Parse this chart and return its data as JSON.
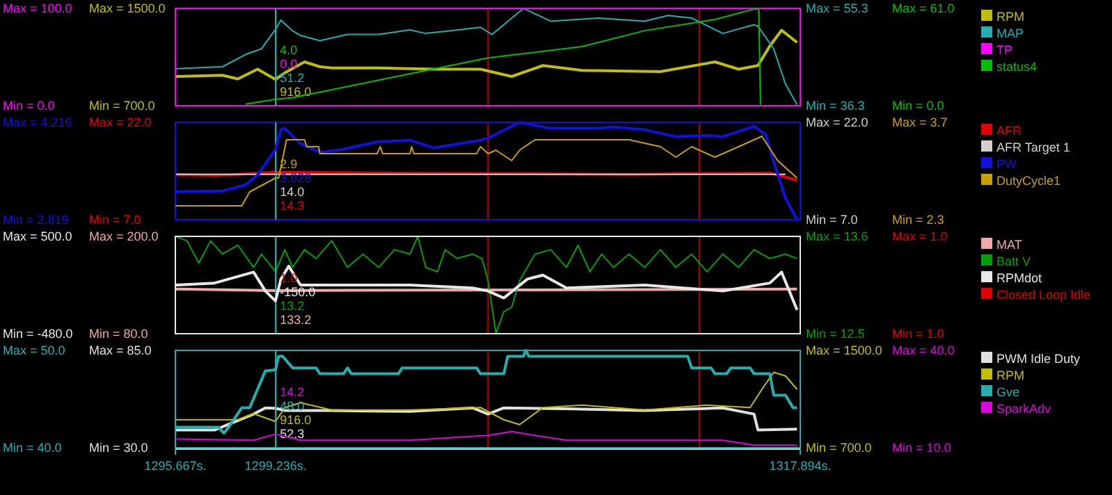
{
  "chart_data": [
    {
      "type": "line",
      "tick_labels": "y",
      "legend": "right",
      "xlim": [
        1295.667,
        1317.894
      ],
      "ylim": [
        700,
        1500
      ],
      "yticks": [
        {
          "value": 700,
          "label": "Min = 700.0"
        },
        {
          "value": 1500,
          "label": "Max = 1500.0"
        }
      ],
      "y2lim": [
        36.3,
        55.3
      ],
      "y2ticks": [
        {
          "value": 36.3,
          "label": "Min = 36.3"
        },
        {
          "value": 55.3,
          "label": "Max = 55.3"
        }
      ],
      "ref_lines": [
        {
          "axis": "x",
          "value": 1299.236,
          "color": "#20b0b0"
        },
        {
          "axis": "x",
          "value": 1306.79,
          "color": "#c00000"
        },
        {
          "axis": "x",
          "value": 1314.31,
          "color": "#c00000"
        }
      ],
      "annotations": [
        "51.2",
        "916.0"
      ],
      "series": [
        {
          "name": "RPM",
          "color": "#c0c000",
          "axis": "y",
          "x": [
            1295.67,
            1297.34,
            1297.89,
            1298.59,
            1299.23,
            1299.56,
            1300.26,
            1300.81,
            1301.23,
            1302.9,
            1304.85,
            1306.52,
            1307.63,
            1308.74,
            1310.13,
            1312.92,
            1314.86,
            1315.7,
            1316.39,
            1316.81,
            1317.23,
            1317.78
          ],
          "values": [
            940,
            950,
            920,
            1000,
            916,
            970,
            1060,
            1020,
            1010,
            1010,
            1000,
            1000,
            940,
            1030,
            990,
            980,
            1060,
            1000,
            1030,
            1190,
            1320,
            1220
          ]
        },
        {
          "name": "MAP",
          "color": "#20b0b0",
          "axis": "y2",
          "x": [
            1295.67,
            1297.34,
            1298.17,
            1298.73,
            1299.23,
            1299.42,
            1299.84,
            1300.12,
            1300.81,
            1301.79,
            1302.9,
            1304.01,
            1304.57,
            1305.4,
            1306.52,
            1306.93,
            1308.05,
            1309.02,
            1310.69,
            1312.36,
            1313.19,
            1314.03,
            1315.14,
            1316.25,
            1316.39,
            1316.95,
            1317.37,
            1317.78
          ],
          "values": [
            43.5,
            43.9,
            46.3,
            47.4,
            51.2,
            53.0,
            50.9,
            50.0,
            49.0,
            50.2,
            50.2,
            51.1,
            50.4,
            50.9,
            51.6,
            50.2,
            55.3,
            52.8,
            53.4,
            52.8,
            53.9,
            53.4,
            50.4,
            52.1,
            51.8,
            47.4,
            40.5,
            36.5
          ]
        }
      ]
    },
    {
      "type": "line",
      "tick_labels": "y",
      "legend": "right",
      "xlim": [
        1295.667,
        1317.894
      ],
      "ylim": [
        0,
        100
      ],
      "yticks": [
        {
          "value": 0,
          "label": "Min = 0.0"
        },
        {
          "value": 100,
          "label": "Max = 100.0"
        }
      ],
      "y2lim": [
        0,
        61
      ],
      "y2ticks": [
        {
          "value": 0,
          "label": "Min = 0.0"
        },
        {
          "value": 61,
          "label": "Max = 61.0"
        }
      ],
      "ref_lines": [
        {
          "axis": "x",
          "value": 1299.236,
          "color": "#20b0b0"
        }
      ],
      "annotations": [
        "4.0",
        "0.0"
      ],
      "series": [
        {
          "name": "TP",
          "color": "#ff00ff",
          "axis": "y"
        },
        {
          "name": "status4",
          "color": "#00c000",
          "axis": "y2",
          "x": [
            1298.17,
            1299.23,
            1299.84,
            1302.9,
            1306.79,
            1310.13,
            1312.36,
            1314.86,
            1316.25,
            1316.42,
            1316.48
          ],
          "values": [
            1,
            4,
            5,
            16,
            30,
            37,
            47,
            54,
            60.5,
            60.5,
            0.5
          ]
        }
      ]
    },
    {
      "type": "line",
      "tick_labels": "y",
      "legend": "right",
      "xlim": [
        1295.667,
        1317.894
      ],
      "ylim": [
        7,
        22
      ],
      "yticks": [
        {
          "value": 7,
          "label": "Min = 7.0"
        },
        {
          "value": 22,
          "label": "Max = 22.0"
        }
      ],
      "y2lim": [
        7,
        22
      ],
      "y2ticks": [
        {
          "value": 7,
          "label": "Min = 7.0"
        },
        {
          "value": 22,
          "label": "Max = 22.0"
        }
      ],
      "ref_lines": [
        {
          "axis": "x",
          "value": 1299.236,
          "color": "#20b0b0"
        },
        {
          "axis": "x",
          "value": 1306.79,
          "color": "#c00000"
        },
        {
          "axis": "x",
          "value": 1314.31,
          "color": "#c00000"
        }
      ],
      "annotations": [
        "14.0",
        "14.3"
      ],
      "series": [
        {
          "name": "AFR",
          "color": "#e00000",
          "axis": "y",
          "x": [
            1295.67,
            1297.06,
            1299.23,
            1302.9,
            1306.79,
            1311.8,
            1316.81,
            1317.78
          ],
          "values": [
            14.0,
            13.8,
            14.3,
            14.2,
            14.1,
            14.0,
            14.2,
            13.1
          ]
        },
        {
          "name": "AFR Target 1",
          "color": "#d0d0d0",
          "axis": "y2",
          "x": [
            1295.67,
            1299.23,
            1317.37
          ],
          "values": [
            14.0,
            14.0,
            14.0
          ]
        }
      ]
    },
    {
      "type": "line",
      "tick_labels": "y",
      "legend": "right",
      "xlim": [
        1295.667,
        1317.894
      ],
      "ylim": [
        2.819,
        4.216
      ],
      "yticks": [
        {
          "value": 2.819,
          "label": "Min = 2.819"
        },
        {
          "value": 4.216,
          "label": "Max = 4.216"
        }
      ],
      "y2lim": [
        2.3,
        3.7
      ],
      "y2ticks": [
        {
          "value": 2.3,
          "label": "Min = 2.3"
        },
        {
          "value": 3.7,
          "label": "Max = 3.7"
        }
      ],
      "ref_lines": [
        {
          "axis": "x",
          "value": 1299.236,
          "color": "#20b0b0"
        }
      ],
      "annotations": [
        "2.9",
        "3.828"
      ],
      "series": [
        {
          "name": "PW",
          "color": "#1010e0",
          "axis": "y",
          "x": [
            1295.67,
            1297.34,
            1298.17,
            1298.59,
            1299.23,
            1299.42,
            1299.56,
            1300.12,
            1300.81,
            1301.51,
            1302.9,
            1304.01,
            1304.85,
            1306.52,
            1306.79,
            1307.91,
            1309.02,
            1310.69,
            1311.25,
            1312.36,
            1313.47,
            1314.58,
            1315.14,
            1316.25,
            1316.67,
            1316.95,
            1317.37,
            1317.78
          ],
          "values": [
            3.22,
            3.23,
            3.32,
            3.46,
            3.828,
            4.11,
            4.13,
            3.91,
            3.79,
            3.82,
            3.94,
            3.96,
            3.85,
            3.96,
            3.99,
            4.216,
            4.13,
            4.13,
            4.15,
            4.11,
            4.01,
            4.03,
            4.01,
            4.16,
            4.04,
            3.65,
            3.13,
            2.819
          ]
        },
        {
          "name": "DutyCycle1",
          "color": "#c8a000",
          "axis": "y2",
          "x": [
            1295.67,
            1298.03,
            1298.31,
            1299.23,
            1299.34,
            1299.62,
            1300.26,
            1300.34,
            1300.76,
            1300.81,
            1302.84,
            1302.96,
            1303.04,
            1304.01,
            1304.07,
            1304.15,
            1306.38,
            1306.52,
            1306.79,
            1307.07,
            1307.63,
            1307.91,
            1308.46,
            1309.3,
            1311.8,
            1312.92,
            1313.47,
            1314.03,
            1314.86,
            1315.7,
            1316.53,
            1317.09,
            1317.78
          ],
          "values": [
            2.5,
            2.5,
            2.7,
            2.9,
            2.9,
            3.45,
            3.45,
            3.35,
            3.35,
            3.25,
            3.25,
            3.35,
            3.25,
            3.25,
            3.35,
            3.25,
            3.25,
            3.35,
            3.25,
            3.3,
            3.15,
            3.3,
            3.45,
            3.45,
            3.45,
            3.35,
            3.2,
            3.35,
            3.2,
            3.35,
            3.5,
            3.15,
            2.9
          ]
        }
      ]
    },
    {
      "type": "line",
      "tick_labels": "y",
      "legend": "right",
      "xlim": [
        1295.667,
        1317.894
      ],
      "ylim": [
        80,
        200
      ],
      "yticks": [
        {
          "value": 80,
          "label": "Min = 80.0"
        },
        {
          "value": 200,
          "label": "Max = 200.0"
        }
      ],
      "y2lim": [
        12.5,
        13.6
      ],
      "y2ticks": [
        {
          "value": 12.5,
          "label": "Min = 12.5"
        },
        {
          "value": 13.6,
          "label": "Max = 13.6"
        }
      ],
      "ref_lines": [
        {
          "axis": "x",
          "value": 1299.236,
          "color": "#20b0b0"
        },
        {
          "axis": "x",
          "value": 1306.79,
          "color": "#c00000"
        },
        {
          "axis": "x",
          "value": 1314.31,
          "color": "#c00000"
        }
      ],
      "annotations": [
        "13.2",
        "133.2"
      ],
      "series": [
        {
          "name": "MAT",
          "color": "#f0a8a8",
          "axis": "y",
          "x": [
            1295.67,
            1299.23,
            1317.78
          ],
          "values": [
            135,
            133.2,
            135
          ]
        },
        {
          "name": "Batt V",
          "color": "#00a000",
          "axis": "y2",
          "x": [
            1295.67,
            1296.08,
            1296.5,
            1296.92,
            1297.34,
            1297.89,
            1298.45,
            1298.73,
            1299.23,
            1299.56,
            1299.84,
            1300.26,
            1300.67,
            1301.23,
            1301.79,
            1302.34,
            1302.9,
            1303.46,
            1304.01,
            1304.29,
            1304.57,
            1304.99,
            1305.26,
            1305.68,
            1306.24,
            1306.57,
            1306.79,
            1307.07,
            1307.35,
            1307.63,
            1307.91,
            1308.46,
            1309.02,
            1309.58,
            1309.99,
            1310.41,
            1310.83,
            1311.25,
            1311.8,
            1312.36,
            1312.92,
            1313.47,
            1314.03,
            1314.58,
            1315.14,
            1315.7,
            1316.25,
            1316.81,
            1317.37,
            1317.78
          ],
          "values": [
            13.6,
            13.55,
            13.3,
            13.55,
            13.4,
            13.5,
            13.25,
            13.4,
            13.2,
            13.45,
            13.25,
            13.45,
            13.35,
            13.55,
            13.25,
            13.4,
            13.25,
            13.45,
            13.4,
            13.6,
            13.25,
            13.2,
            13.45,
            13.35,
            13.4,
            13.35,
            13.1,
            12.5,
            12.75,
            12.8,
            13.1,
            13.4,
            13.45,
            13.25,
            13.5,
            13.2,
            13.4,
            13.25,
            13.4,
            13.25,
            13.45,
            13.25,
            13.4,
            13.2,
            13.4,
            13.25,
            13.45,
            13.35,
            13.4,
            13.35
          ]
        }
      ]
    },
    {
      "type": "line",
      "tick_labels": "y",
      "legend": "right",
      "xlim": [
        1295.667,
        1317.894
      ],
      "ylim": [
        -480,
        500
      ],
      "yticks": [
        {
          "value": -480,
          "label": "Min = -480.0"
        },
        {
          "value": 500,
          "label": "Max = 500.0"
        }
      ],
      "ref_lines": [
        {
          "axis": "x",
          "value": 1299.236,
          "color": "#20b0b0"
        }
      ],
      "annotations": [
        "1.0",
        "-150.0",
        "Max = 1.0",
        "Min = 1.0"
      ],
      "series": [
        {
          "name": "RPMdot",
          "color": "#e8e8e8",
          "axis": "y",
          "x": [
            1295.67,
            1297.06,
            1298.45,
            1298.87,
            1299.23,
            1299.42,
            1299.7,
            1300.12,
            1301.23,
            1304.01,
            1306.24,
            1306.79,
            1307.35,
            1308.19,
            1308.74,
            1309.58,
            1312.36,
            1315.14,
            1316.81,
            1317.23,
            1317.78
          ],
          "values": [
            10,
            30,
            140,
            -50,
            -150,
            70,
            200,
            10,
            10,
            10,
            -20,
            -50,
            -120,
            70,
            110,
            -20,
            10,
            -50,
            30,
            140,
            -240
          ]
        },
        {
          "name": "Closed Loop Idle",
          "color": "#e00000"
        }
      ]
    },
    {
      "type": "line",
      "legend": "right",
      "xlim": [
        1295.667,
        1317.894
      ],
      "xticks": [
        {
          "value": 1295.667,
          "label": "1295.667s."
        },
        {
          "value": 1317.894,
          "label": "1317.894s."
        }
      ],
      "ylim": [
        30,
        85
      ],
      "yticks": [
        {
          "value": 30,
          "label": "Min = 30.0"
        },
        {
          "value": 85,
          "label": "Max = 85.0"
        }
      ],
      "y2lim": [
        700,
        1500
      ],
      "y2ticks": [
        {
          "value": 700,
          "label": "Min = 700.0"
        },
        {
          "value": 1500,
          "label": "Max = 1500.0"
        }
      ],
      "ref_lines": [
        {
          "axis": "x",
          "value": 1299.236,
          "color": "#20b0b0",
          "label": "1299.236s."
        },
        {
          "axis": "x",
          "value": 1306.79,
          "color": "#c00000"
        },
        {
          "axis": "x",
          "value": 1314.31,
          "color": "#c00000"
        }
      ],
      "annotations": [
        "916.0",
        "52.3"
      ],
      "series": [
        {
          "name": "PWM Idle Duty",
          "color": "#e0e0e0",
          "axis": "y",
          "x": [
            1295.67,
            1297.06,
            1298.45,
            1298.87,
            1299.23,
            1299.56,
            1301.23,
            1304.01,
            1306.24,
            1306.79,
            1307.35,
            1309.58,
            1312.36,
            1315.14,
            1316.25,
            1316.39,
            1317.78
          ],
          "values": [
            40,
            40,
            49,
            52.5,
            52.3,
            51,
            51,
            50.5,
            52.5,
            49,
            52.5,
            52,
            51,
            52.5,
            49,
            40,
            40.5
          ]
        },
        {
          "name": "RPM",
          "color": "#c0c000",
          "axis": "y2",
          "x": [
            1295.67,
            1297.89,
            1298.45,
            1299.23,
            1299.56,
            1300.12,
            1301.23,
            1304.01,
            1306.52,
            1307.35,
            1307.91,
            1308.74,
            1310.13,
            1312.36,
            1314.58,
            1316.11,
            1316.53,
            1316.95,
            1317.37,
            1317.78
          ],
          "values": [
            930,
            930,
            980,
            916,
            1030,
            1070,
            1010,
            1010,
            1030,
            930,
            890,
            1030,
            1050,
            1010,
            1050,
            1030,
            1180,
            1320,
            1290,
            1180
          ]
        }
      ]
    },
    {
      "type": "line",
      "tick_labels": "y",
      "legend": "right",
      "xlim": [
        1295.667,
        1317.894
      ],
      "ylim": [
        40,
        50
      ],
      "yticks": [
        {
          "value": 40,
          "label": "Min = 40.0"
        },
        {
          "value": 50,
          "label": "Max = 50.0"
        }
      ],
      "y2lim": [
        10,
        40
      ],
      "y2ticks": [
        {
          "value": 10,
          "label": "Min = 10.0"
        },
        {
          "value": 40,
          "label": "Max = 40.0"
        }
      ],
      "ref_lines": [
        {
          "axis": "x",
          "value": 1299.236,
          "color": "#20b0b0"
        }
      ],
      "annotations": [
        "14.2",
        "48.0"
      ],
      "series": [
        {
          "name": "Gve",
          "color": "#20b0b0",
          "axis": "y",
          "x": [
            1295.67,
            1297.2,
            1297.39,
            1297.56,
            1298.03,
            1298.31,
            1298.59,
            1298.87,
            1299.23,
            1299.34,
            1299.48,
            1299.84,
            1300.67,
            1300.81,
            1301.65,
            1301.79,
            1301.93,
            1303.6,
            1303.73,
            1306.38,
            1306.52,
            1307.35,
            1307.49,
            1308.05,
            1308.13,
            1308.24,
            1313.89,
            1314.03,
            1314.72,
            1314.86,
            1315.28,
            1315.42,
            1316.11,
            1316.25,
            1316.81,
            1316.95,
            1317.37,
            1317.64,
            1317.78
          ],
          "values": [
            42.1,
            42.1,
            41.5,
            42.1,
            44.1,
            44.1,
            46.0,
            47.9,
            48.0,
            49.4,
            49.4,
            48.2,
            48.2,
            47.6,
            47.6,
            48.2,
            47.6,
            47.6,
            48.2,
            48.2,
            47.6,
            47.6,
            49.4,
            49.4,
            50.0,
            49.4,
            49.4,
            48.2,
            48.2,
            47.6,
            47.6,
            48.2,
            48.2,
            47.6,
            47.6,
            45.4,
            45.4,
            44.1,
            44.1
          ]
        },
        {
          "name": "SparkAdv",
          "color": "#e000e0",
          "axis": "y2",
          "x": [
            1295.67,
            1298.45,
            1299.23,
            1300.12,
            1304.01,
            1306.79,
            1307.63,
            1308.46,
            1309.58,
            1315.14,
            1316.25,
            1317.78
          ],
          "values": [
            12.7,
            12.3,
            14.2,
            12.3,
            12.3,
            13.8,
            15.0,
            13.8,
            12.3,
            12.3,
            10.8,
            10.8
          ]
        }
      ]
    }
  ]
}
